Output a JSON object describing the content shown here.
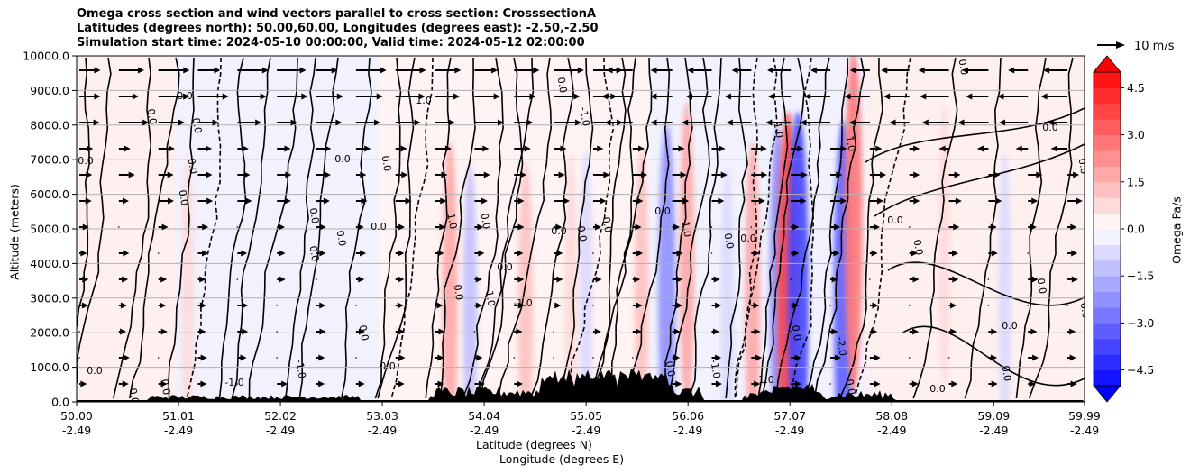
{
  "chart_data": {
    "type": "heatmap",
    "title_lines": [
      "Omega cross section and wind vectors parallel to cross section: CrosssectionA",
      "Latitudes (degrees north): 50.00,60.00, Longitudes (degrees east): -2.50,-2.50",
      "Simulation start time: 2024-05-10 00:00:00, Valid time: 2024-05-12 02:00:00"
    ],
    "xlabel_line1": "Latitude (degrees N)",
    "xlabel_line2": "Longitude (degrees E)",
    "ylabel": "Altitude (meters)",
    "colorbar_label": "Omega Pa/s",
    "quiver_key_label": "10 m/s",
    "x_ticks": [
      {
        "lat": "50.00",
        "lon": "-2.49",
        "value": 50.0
      },
      {
        "lat": "51.01",
        "lon": "-2.49",
        "value": 51.01
      },
      {
        "lat": "52.02",
        "lon": "-2.49",
        "value": 52.02
      },
      {
        "lat": "53.03",
        "lon": "-2.49",
        "value": 53.03
      },
      {
        "lat": "54.04",
        "lon": "-2.49",
        "value": 54.04
      },
      {
        "lat": "55.05",
        "lon": "-2.49",
        "value": 55.05
      },
      {
        "lat": "56.06",
        "lon": "-2.49",
        "value": 56.06
      },
      {
        "lat": "57.07",
        "lon": "-2.49",
        "value": 57.07
      },
      {
        "lat": "58.08",
        "lon": "-2.49",
        "value": 58.08
      },
      {
        "lat": "59.09",
        "lon": "-2.49",
        "value": 59.09
      },
      {
        "lat": "59.99",
        "lon": "-2.49",
        "value": 59.99
      }
    ],
    "y_ticks": [
      {
        "label": "0.0",
        "value": 0
      },
      {
        "label": "1000.0",
        "value": 1000
      },
      {
        "label": "2000.0",
        "value": 2000
      },
      {
        "label": "3000.0",
        "value": 3000
      },
      {
        "label": "4000.0",
        "value": 4000
      },
      {
        "label": "5000.0",
        "value": 5000
      },
      {
        "label": "6000.0",
        "value": 6000
      },
      {
        "label": "7000.0",
        "value": 7000
      },
      {
        "label": "8000.0",
        "value": 8000
      },
      {
        "label": "9000.0",
        "value": 9000
      },
      {
        "label": "10000.0",
        "value": 10000
      }
    ],
    "xlim": [
      50.0,
      59.99
    ],
    "ylim": [
      0,
      10000
    ],
    "colorbar_ticks": [
      {
        "label": "4.5",
        "value": 4.5
      },
      {
        "label": "3.0",
        "value": 3.0
      },
      {
        "label": "1.5",
        "value": 1.5
      },
      {
        "label": "0.0",
        "value": 0.0
      },
      {
        "label": "−1.5",
        "value": -1.5
      },
      {
        "label": "−3.0",
        "value": -3.0
      },
      {
        "label": "−4.5",
        "value": -4.5
      }
    ],
    "colorbar_range": [
      -5.0,
      5.0
    ],
    "colorbar_levels": 20,
    "grid": true,
    "features": [
      {
        "lat": 51.1,
        "alt": 3000,
        "omega": 0.6
      },
      {
        "lat": 53.7,
        "alt": 3000,
        "omega": 1.6
      },
      {
        "lat": 53.9,
        "alt": 2500,
        "omega": -1.2
      },
      {
        "lat": 54.45,
        "alt": 2500,
        "omega": 1.4
      },
      {
        "lat": 54.9,
        "alt": 3000,
        "omega": 0.8
      },
      {
        "lat": 55.05,
        "alt": 3000,
        "omega": -1.0
      },
      {
        "lat": 55.6,
        "alt": 3000,
        "omega": 1.1
      },
      {
        "lat": 55.85,
        "alt": 3200,
        "omega": -2.4
      },
      {
        "lat": 56.05,
        "alt": 4200,
        "omega": 1.5
      },
      {
        "lat": 56.45,
        "alt": 2500,
        "omega": -1.0
      },
      {
        "lat": 56.7,
        "alt": 3000,
        "omega": 1.6
      },
      {
        "lat": 56.95,
        "alt": 3200,
        "omega": -2.2
      },
      {
        "lat": 57.05,
        "alt": 3000,
        "omega": 3.8
      },
      {
        "lat": 57.15,
        "alt": 3000,
        "omega": -3.8
      },
      {
        "lat": 57.6,
        "alt": 3000,
        "omega": -3.2
      },
      {
        "lat": 57.7,
        "alt": 5200,
        "omega": 2.6
      },
      {
        "lat": 58.6,
        "alt": 4500,
        "omega": 0.5
      },
      {
        "lat": 59.2,
        "alt": 3000,
        "omega": -0.7
      }
    ],
    "contour_labels": [
      "0.0",
      "1.0",
      "-1.0",
      "-2.0"
    ]
  }
}
